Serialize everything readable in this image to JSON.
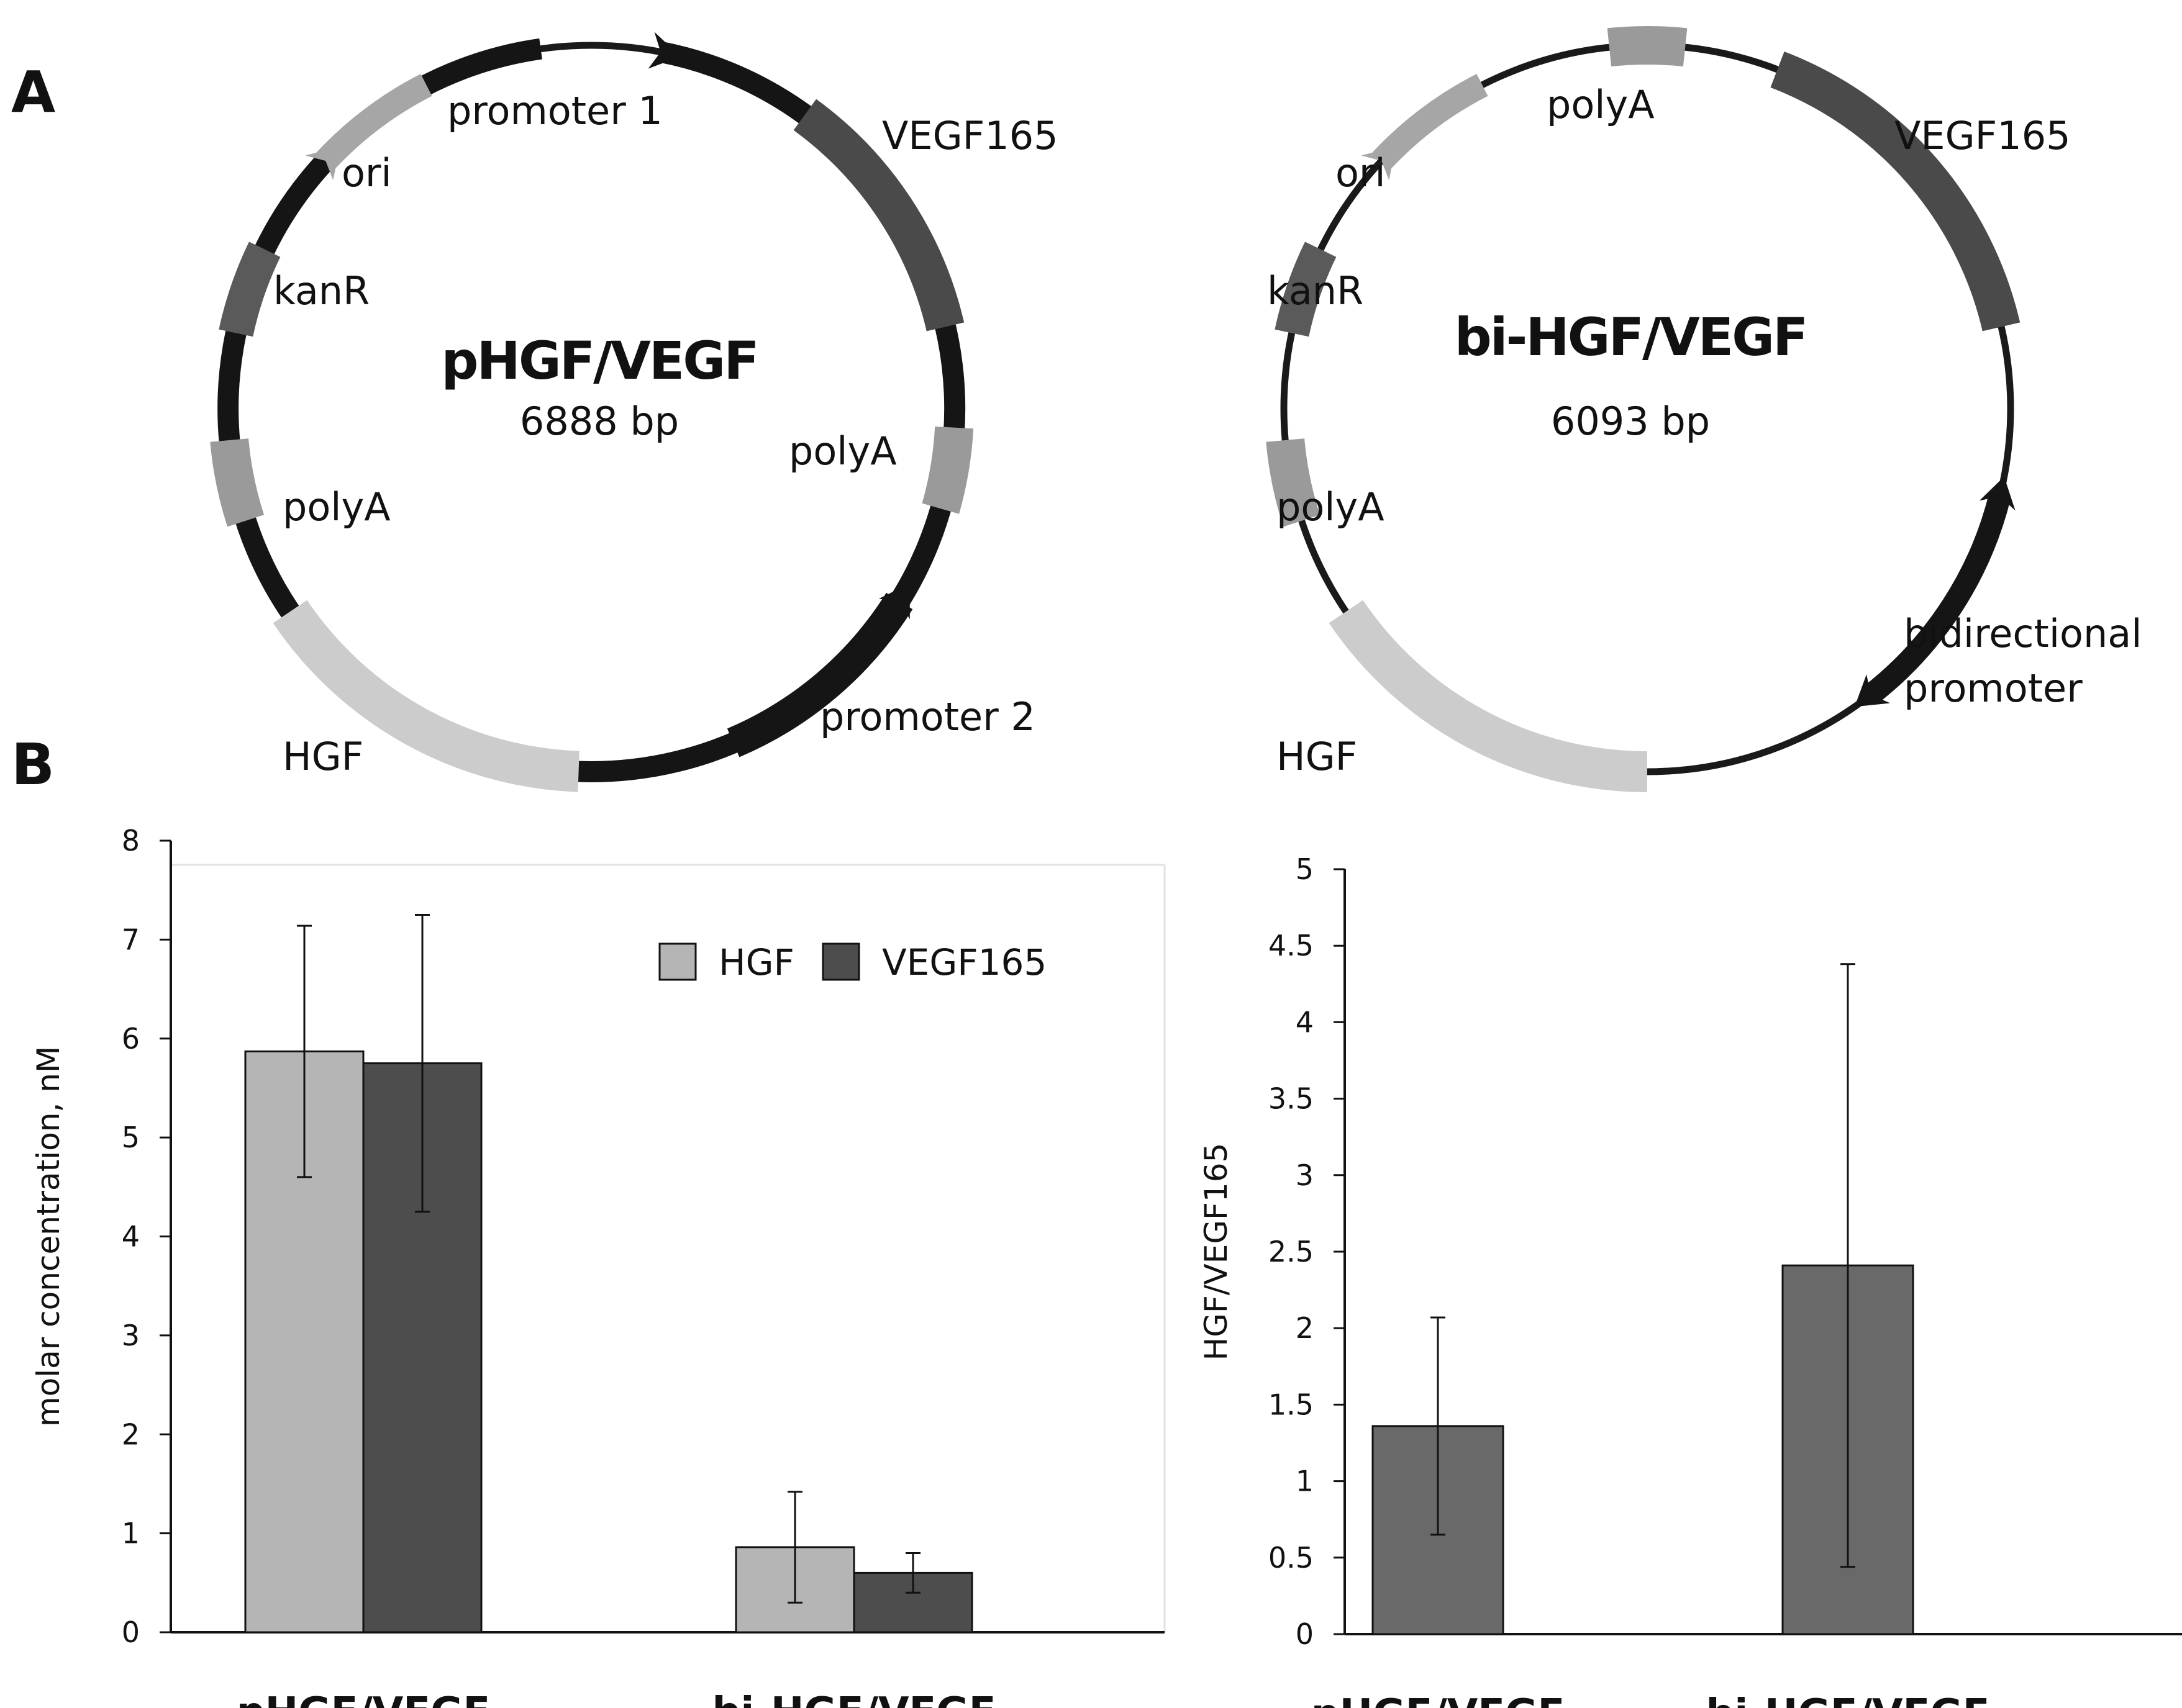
{
  "panel_labels": {
    "a": "A",
    "b": "B"
  },
  "colors": {
    "backbone": "#1a1a1a",
    "promoter": "#151515",
    "vegf": "#4a4a4a",
    "polya": "#9a9a9a",
    "hgf": "#cccccc",
    "kanr": "#5a5a5a",
    "ori": "#a6a6a6",
    "bar_hgf": "#b5b5b5",
    "bar_vegf": "#4d4d4d",
    "bar_ratio": "#696969"
  },
  "plasmids": [
    {
      "name": "pHGF/VEGF",
      "size": "6888 bp",
      "features": [
        {
          "id": "promoter-1",
          "label": "promoter 1",
          "type": "promoter"
        },
        {
          "id": "vegf165",
          "label": "VEGF165",
          "type": "vegf"
        },
        {
          "id": "polya-right",
          "label": "polyA",
          "type": "polya"
        },
        {
          "id": "promoter-2",
          "label": "promoter 2",
          "type": "promoter"
        },
        {
          "id": "hgf",
          "label": "HGF",
          "type": "hgf"
        },
        {
          "id": "polya-left",
          "label": "polyA",
          "type": "polya"
        },
        {
          "id": "kanr",
          "label": "kanR",
          "type": "kanr"
        },
        {
          "id": "ori",
          "label": "ori",
          "type": "ori"
        }
      ]
    },
    {
      "name": "bi-HGF/VEGF",
      "size": "6093 bp",
      "features": [
        {
          "id": "polya-top",
          "label": "polyA",
          "type": "polya"
        },
        {
          "id": "vegf165",
          "label": "VEGF165",
          "type": "vegf"
        },
        {
          "id": "bidirectional-promoter",
          "label": "bidirectional\npromoter",
          "type": "promoter"
        },
        {
          "id": "hgf",
          "label": "HGF",
          "type": "hgf"
        },
        {
          "id": "polya-left",
          "label": "polyA",
          "type": "polya"
        },
        {
          "id": "kanr",
          "label": "kanR",
          "type": "kanr"
        },
        {
          "id": "ori",
          "label": "ori",
          "type": "ori"
        }
      ]
    }
  ],
  "chart_data": [
    {
      "type": "bar",
      "title": "",
      "categories": [
        "pHGF/VEGF",
        "bi-HGF/VEGF"
      ],
      "series": [
        {
          "name": "HGF",
          "values": [
            5.87,
            0.86
          ],
          "error": [
            1.27,
            0.56
          ]
        },
        {
          "name": "VEGF165",
          "values": [
            5.75,
            0.6
          ],
          "error": [
            1.5,
            0.2
          ]
        }
      ],
      "xlabel": "",
      "ylabel": "molar concentration, nM",
      "ylim": [
        0,
        8
      ],
      "yticks": [
        0,
        1,
        2,
        3,
        4,
        5,
        6,
        7,
        8
      ],
      "grid": false,
      "legend": "top-right"
    },
    {
      "type": "bar",
      "title": "",
      "categories": [
        "pHGF/VEGF",
        "bi-HGF/VEGF"
      ],
      "series": [
        {
          "name": "HGF/VEGF165",
          "values": [
            1.36,
            2.41
          ],
          "error": [
            0.71,
            1.97
          ]
        }
      ],
      "xlabel": "",
      "ylabel": "HGF/VEGF165",
      "ylim": [
        0,
        5
      ],
      "yticks": [
        0,
        0.5,
        1,
        1.5,
        2,
        2.5,
        3,
        3.5,
        4,
        4.5,
        5
      ],
      "grid": false,
      "legend": "none"
    }
  ]
}
